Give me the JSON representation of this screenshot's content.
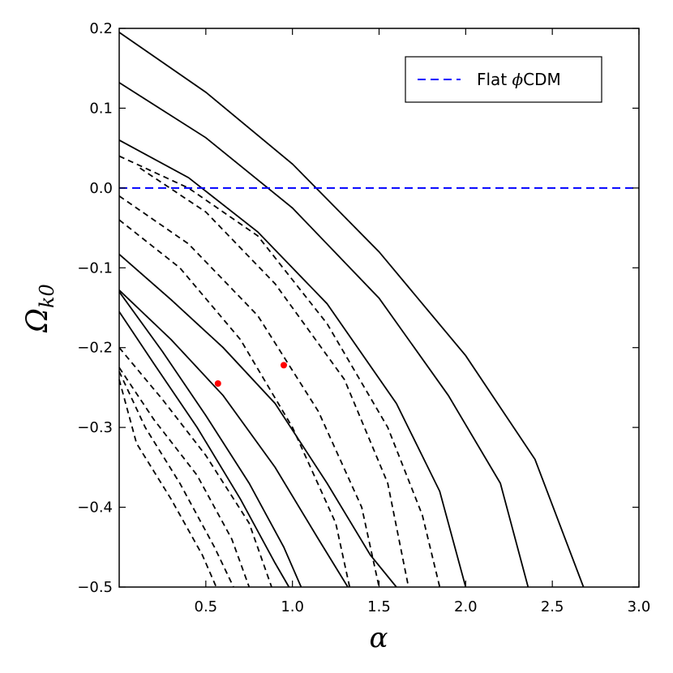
{
  "chart_data": {
    "type": "line",
    "title": "",
    "xlabel": "α",
    "ylabel_main": "Ω",
    "ylabel_sub": "k0",
    "xlim": [
      0,
      3.0
    ],
    "ylim": [
      -0.5,
      0.2
    ],
    "xticks": [
      0.5,
      1.0,
      1.5,
      2.0,
      2.5,
      3.0
    ],
    "xtick_labels": [
      "0.5",
      "1.0",
      "1.5",
      "2.0",
      "2.5",
      "3.0"
    ],
    "yticks": [
      0.2,
      0.1,
      0.0,
      -0.1,
      -0.2,
      -0.3,
      -0.4,
      -0.5
    ],
    "ytick_labels": [
      "0.2",
      "0.1",
      "0.0",
      "−0.1",
      "−0.2",
      "−0.3",
      "−0.4",
      "−0.5"
    ],
    "grid": false,
    "legend": {
      "position": "top-right",
      "entries": [
        {
          "label_text": "Flat ",
          "label_symbol": "ϕ",
          "label_suffix": "CDM",
          "style": "dashed",
          "color": "#0000ff"
        }
      ]
    },
    "reference_line": {
      "y": 0.0,
      "color": "#0000ff",
      "style": "dashed"
    },
    "series": [
      {
        "style": "solid",
        "color": "#000000",
        "points": [
          [
            0,
            0.195
          ],
          [
            0.5,
            0.12
          ],
          [
            1.0,
            0.03
          ],
          [
            1.5,
            -0.08
          ],
          [
            2.0,
            -0.21
          ],
          [
            2.4,
            -0.34
          ],
          [
            2.68,
            -0.5
          ]
        ]
      },
      {
        "style": "solid",
        "color": "#000000",
        "points": [
          [
            0,
            0.132
          ],
          [
            0.5,
            0.063
          ],
          [
            1.0,
            -0.025
          ],
          [
            1.5,
            -0.138
          ],
          [
            1.9,
            -0.26
          ],
          [
            2.2,
            -0.37
          ],
          [
            2.36,
            -0.5
          ]
        ]
      },
      {
        "style": "solid",
        "color": "#000000",
        "points": [
          [
            0,
            0.06
          ],
          [
            0.4,
            0.013
          ],
          [
            0.8,
            -0.055
          ],
          [
            1.2,
            -0.145
          ],
          [
            1.6,
            -0.27
          ],
          [
            1.85,
            -0.38
          ],
          [
            2.0,
            -0.5
          ]
        ]
      },
      {
        "style": "solid",
        "color": "#000000",
        "points": [
          [
            0,
            -0.083
          ],
          [
            0.3,
            -0.14
          ],
          [
            0.6,
            -0.2
          ],
          [
            0.9,
            -0.27
          ],
          [
            1.2,
            -0.37
          ],
          [
            1.45,
            -0.46
          ],
          [
            1.6,
            -0.5
          ]
        ]
      },
      {
        "style": "solid",
        "color": "#000000",
        "points": [
          [
            0,
            -0.128
          ],
          [
            0.3,
            -0.19
          ],
          [
            0.6,
            -0.26
          ],
          [
            0.9,
            -0.35
          ],
          [
            1.15,
            -0.44
          ],
          [
            1.32,
            -0.5
          ]
        ]
      },
      {
        "style": "solid",
        "color": "#000000",
        "points": [
          [
            0,
            -0.13
          ],
          [
            0.25,
            -0.205
          ],
          [
            0.5,
            -0.285
          ],
          [
            0.75,
            -0.37
          ],
          [
            0.95,
            -0.45
          ],
          [
            1.05,
            -0.5
          ]
        ]
      },
      {
        "style": "solid",
        "color": "#000000",
        "points": [
          [
            0,
            -0.155
          ],
          [
            0.2,
            -0.22
          ],
          [
            0.45,
            -0.3
          ],
          [
            0.7,
            -0.39
          ],
          [
            0.9,
            -0.47
          ],
          [
            0.98,
            -0.5
          ]
        ]
      },
      {
        "style": "dashed",
        "color": "#000000",
        "points": [
          [
            0,
            0.04
          ],
          [
            0.4,
            0.0
          ],
          [
            0.8,
            -0.06
          ],
          [
            1.2,
            -0.17
          ],
          [
            1.55,
            -0.3
          ],
          [
            1.75,
            -0.41
          ],
          [
            1.85,
            -0.5
          ]
        ]
      },
      {
        "style": "dashed",
        "color": "#000000",
        "points": [
          [
            0.12,
            0.025
          ],
          [
            0.5,
            -0.03
          ],
          [
            0.9,
            -0.12
          ],
          [
            1.3,
            -0.24
          ],
          [
            1.55,
            -0.37
          ],
          [
            1.67,
            -0.5
          ]
        ]
      },
      {
        "style": "dashed",
        "color": "#000000",
        "points": [
          [
            0,
            -0.01
          ],
          [
            0.4,
            -0.07
          ],
          [
            0.8,
            -0.16
          ],
          [
            1.15,
            -0.28
          ],
          [
            1.4,
            -0.4
          ],
          [
            1.5,
            -0.5
          ]
        ]
      },
      {
        "style": "dashed",
        "color": "#000000",
        "points": [
          [
            0,
            -0.04
          ],
          [
            0.35,
            -0.1
          ],
          [
            0.7,
            -0.19
          ],
          [
            1.0,
            -0.3
          ],
          [
            1.25,
            -0.42
          ],
          [
            1.33,
            -0.5
          ]
        ]
      },
      {
        "style": "dashed",
        "color": "#000000",
        "points": [
          [
            0,
            -0.2
          ],
          [
            0.25,
            -0.265
          ],
          [
            0.5,
            -0.335
          ],
          [
            0.75,
            -0.42
          ],
          [
            0.88,
            -0.5
          ]
        ]
      },
      {
        "style": "dashed",
        "color": "#000000",
        "points": [
          [
            0,
            -0.225
          ],
          [
            0.2,
            -0.29
          ],
          [
            0.45,
            -0.36
          ],
          [
            0.65,
            -0.44
          ],
          [
            0.75,
            -0.5
          ]
        ]
      },
      {
        "style": "dashed",
        "color": "#000000",
        "points": [
          [
            0,
            -0.23
          ],
          [
            0.15,
            -0.3
          ],
          [
            0.35,
            -0.37
          ],
          [
            0.55,
            -0.45
          ],
          [
            0.66,
            -0.5
          ]
        ]
      },
      {
        "style": "dashed",
        "color": "#000000",
        "points": [
          [
            0,
            -0.24
          ],
          [
            0.1,
            -0.32
          ],
          [
            0.3,
            -0.39
          ],
          [
            0.48,
            -0.46
          ],
          [
            0.56,
            -0.5
          ]
        ]
      }
    ],
    "markers": [
      {
        "x": 0.57,
        "y": -0.245,
        "color": "#ff0000"
      },
      {
        "x": 0.95,
        "y": -0.222,
        "color": "#ff0000"
      }
    ]
  }
}
